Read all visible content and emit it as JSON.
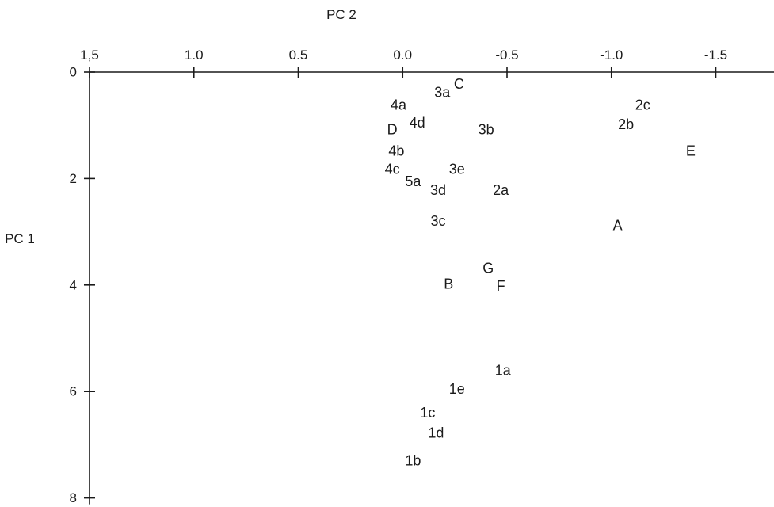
{
  "chart_data": {
    "type": "scatter",
    "title": "",
    "xlabel": "PC 2",
    "ylabel": "PC 1",
    "x_axis": {
      "position": "top",
      "reversed": true,
      "range": [
        1.5,
        -1.8
      ],
      "ticks": [
        1.5,
        1.0,
        0.5,
        0.0,
        -0.5,
        -1.0,
        -1.5
      ],
      "tick_labels": [
        "1,5",
        "1.0",
        "0.5",
        "0.0",
        "-0.5",
        "-1.0",
        "-1.5"
      ]
    },
    "y_axis": {
      "position": "left",
      "inverted": true,
      "range": [
        0,
        8
      ],
      "ticks": [
        0,
        2,
        4,
        6,
        8
      ],
      "tick_labels": [
        "0",
        "2",
        "4",
        "6",
        "8"
      ]
    },
    "grid": false,
    "legend": "none",
    "points": [
      {
        "label": "C",
        "x": -0.27,
        "y": 0.22
      },
      {
        "label": "3a",
        "x": -0.19,
        "y": 0.38
      },
      {
        "label": "4a",
        "x": 0.02,
        "y": 0.62
      },
      {
        "label": "2c",
        "x": -1.15,
        "y": 0.62
      },
      {
        "label": "4d",
        "x": -0.07,
        "y": 0.95
      },
      {
        "label": "D",
        "x": 0.05,
        "y": 1.08
      },
      {
        "label": "3b",
        "x": -0.4,
        "y": 1.08
      },
      {
        "label": "2b",
        "x": -1.07,
        "y": 0.98
      },
      {
        "label": "4b",
        "x": 0.03,
        "y": 1.48
      },
      {
        "label": "E",
        "x": -1.38,
        "y": 1.48
      },
      {
        "label": "4c",
        "x": 0.05,
        "y": 1.82
      },
      {
        "label": "3e",
        "x": -0.26,
        "y": 1.82
      },
      {
        "label": "5a",
        "x": -0.05,
        "y": 2.05
      },
      {
        "label": "3d",
        "x": -0.17,
        "y": 2.22
      },
      {
        "label": "2a",
        "x": -0.47,
        "y": 2.22
      },
      {
        "label": "3c",
        "x": -0.17,
        "y": 2.8
      },
      {
        "label": "A",
        "x": -1.03,
        "y": 2.88
      },
      {
        "label": "G",
        "x": -0.41,
        "y": 3.68
      },
      {
        "label": "B",
        "x": -0.22,
        "y": 3.98
      },
      {
        "label": "F",
        "x": -0.47,
        "y": 4.02
      },
      {
        "label": "1a",
        "x": -0.48,
        "y": 5.6
      },
      {
        "label": "1e",
        "x": -0.26,
        "y": 5.95
      },
      {
        "label": "1c",
        "x": -0.12,
        "y": 6.4
      },
      {
        "label": "1d",
        "x": -0.16,
        "y": 6.78
      },
      {
        "label": "1b",
        "x": -0.05,
        "y": 7.3
      }
    ]
  }
}
